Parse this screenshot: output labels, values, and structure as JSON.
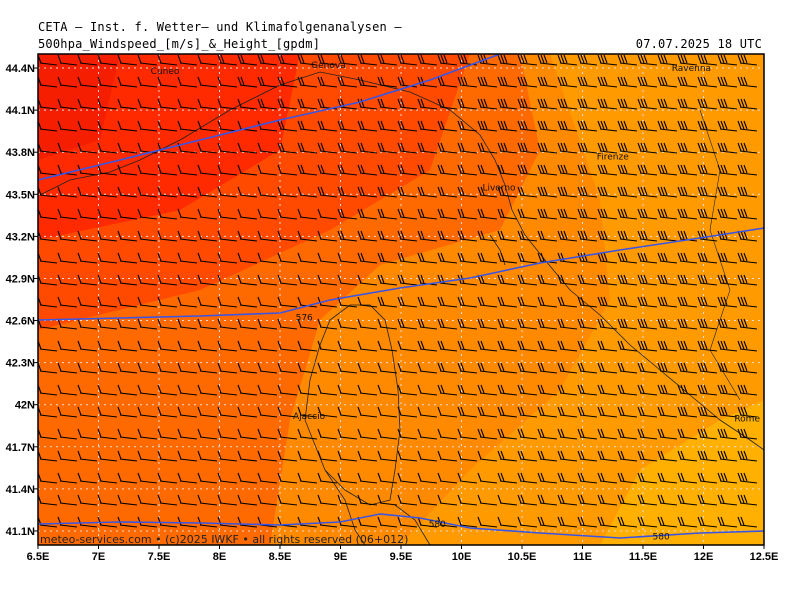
{
  "header": {
    "title": "CETA – Inst. f. Wetter– und Klimafolgenanalysen –",
    "subtitle": "500hpa_Windspeed_[m/s]_&_Height_[gpdm]",
    "timestamp": "07.07.2025 18 UTC"
  },
  "axes": {
    "x_ticks": [
      "6.5E",
      "7E",
      "7.5E",
      "8E",
      "8.5E",
      "9E",
      "9.5E",
      "10E",
      "10.5E",
      "11E",
      "11.5E",
      "12E",
      "12.5E"
    ],
    "y_ticks": [
      "44.4N",
      "44.1N",
      "43.8N",
      "43.5N",
      "43.2N",
      "42.9N",
      "42.6N",
      "42.3N",
      "42N",
      "41.7N",
      "41.4N",
      "41.1N"
    ],
    "x_range": [
      6.5,
      12.5
    ],
    "y_range": [
      41.0,
      44.5
    ]
  },
  "cities": [
    {
      "name": "Genova",
      "lon": 8.9,
      "lat": 44.42
    },
    {
      "name": "Cuneo",
      "lon": 7.55,
      "lat": 44.38
    },
    {
      "name": "Livorno",
      "lon": 10.31,
      "lat": 43.55
    },
    {
      "name": "Firenze",
      "lon": 11.25,
      "lat": 43.77
    },
    {
      "name": "Ravenna",
      "lon": 11.9,
      "lat": 44.4
    },
    {
      "name": "Ajaccio",
      "lon": 8.74,
      "lat": 41.92
    },
    {
      "name": "Rome",
      "lon": 12.49,
      "lat": 41.9
    }
  ],
  "contours": [
    {
      "label": "576",
      "label_lon": 8.7,
      "label_lat": 42.62
    },
    {
      "label": "580",
      "label_lon": 9.8,
      "label_lat": 41.15
    },
    {
      "label": "580",
      "label_lon": 11.65,
      "label_lat": 41.06
    }
  ],
  "credit": "meteo-services.com • (c)2025 IWKF • all rights reserved (06+012)",
  "colors": {
    "strong": "#ff2a00",
    "high": "#ff4a00",
    "mid": "#ff6a00",
    "low": "#ff8a00",
    "weak": "#ffa200",
    "weakest": "#ffb400",
    "contour": "#3a55e6",
    "grid": "#d8d8d8"
  }
}
